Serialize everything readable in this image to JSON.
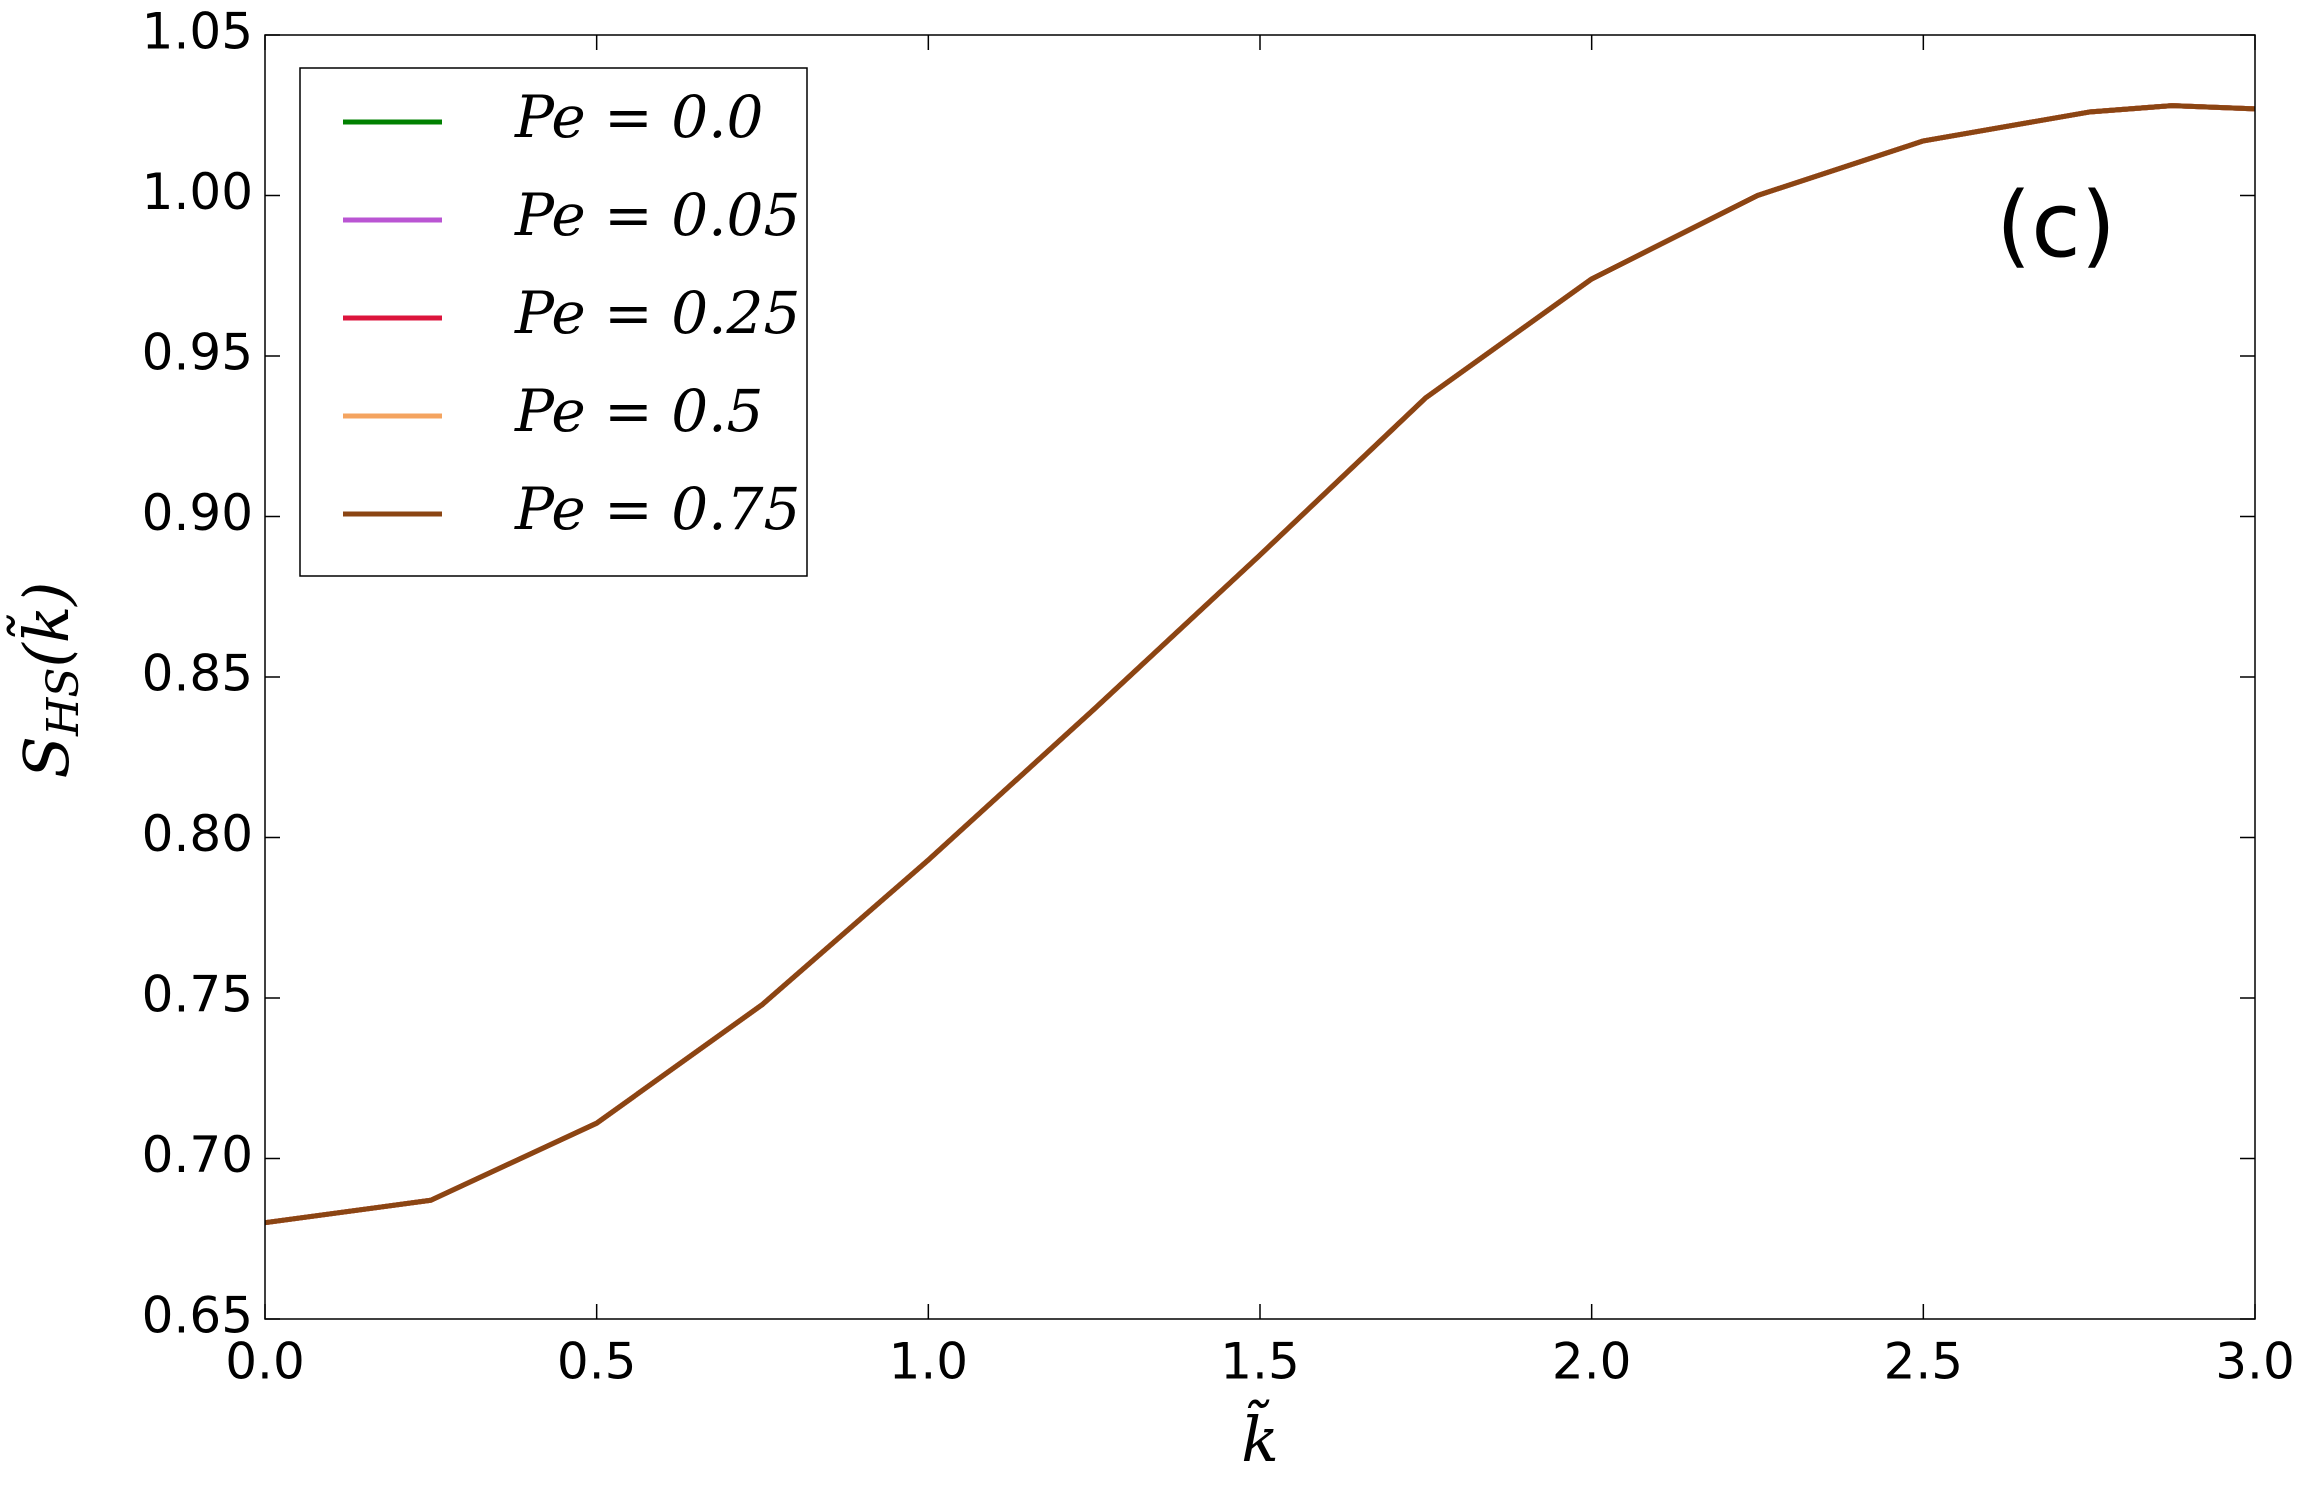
{
  "chart_data": {
    "type": "line",
    "xlabel": "k̃",
    "ylabel": {
      "base": "S",
      "sub": "HS",
      "arg": "(k̃)"
    },
    "annotation": "(c)",
    "x": [
      0.0,
      0.25,
      0.5,
      0.75,
      1.0,
      1.25,
      1.5,
      1.75,
      2.0,
      2.25,
      2.5,
      2.75,
      2.875,
      3.0
    ],
    "series": [
      {
        "name": "Pe = 0.0",
        "color": "#008000",
        "values": [
          0.68,
          0.687,
          0.711,
          0.748,
          0.793,
          0.84,
          0.888,
          0.937,
          0.974,
          1.0,
          1.017,
          1.026,
          1.028,
          1.027
        ]
      },
      {
        "name": "Pe = 0.05",
        "color": "#ba55d3",
        "values": [
          0.68,
          0.687,
          0.711,
          0.748,
          0.793,
          0.84,
          0.888,
          0.937,
          0.974,
          1.0,
          1.017,
          1.026,
          1.028,
          1.027
        ]
      },
      {
        "name": "Pe = 0.25",
        "color": "#dc143c",
        "values": [
          0.68,
          0.687,
          0.711,
          0.748,
          0.793,
          0.84,
          0.888,
          0.937,
          0.974,
          1.0,
          1.017,
          1.026,
          1.028,
          1.027
        ]
      },
      {
        "name": "Pe = 0.5",
        "color": "#f4a460",
        "values": [
          0.68,
          0.687,
          0.711,
          0.748,
          0.793,
          0.84,
          0.888,
          0.937,
          0.974,
          1.0,
          1.017,
          1.026,
          1.028,
          1.027
        ]
      },
      {
        "name": "Pe = 0.75",
        "color": "#8b4513",
        "values": [
          0.68,
          0.687,
          0.711,
          0.748,
          0.793,
          0.84,
          0.888,
          0.937,
          0.974,
          1.0,
          1.017,
          1.026,
          1.028,
          1.027
        ]
      }
    ],
    "xlim": [
      0.0,
      3.0
    ],
    "xticks": [
      {
        "value": 0,
        "label": "0.0"
      },
      0.5,
      {
        "value": 1,
        "label": "1.0"
      },
      1.5,
      {
        "value": 2,
        "label": "2.0"
      },
      2.5,
      {
        "value": 3,
        "label": "3.0"
      }
    ],
    "ylim": [
      0.65,
      1.05
    ],
    "yticks": [
      0.65,
      {
        "value": 0.7,
        "label": "0.70"
      },
      0.75,
      {
        "value": 0.8,
        "label": "0.80"
      },
      0.85,
      {
        "value": 0.9,
        "label": "0.90"
      },
      0.95,
      {
        "value": 1.0,
        "label": "1.00"
      },
      1.05
    ],
    "grid": false,
    "legend": "upper left"
  }
}
